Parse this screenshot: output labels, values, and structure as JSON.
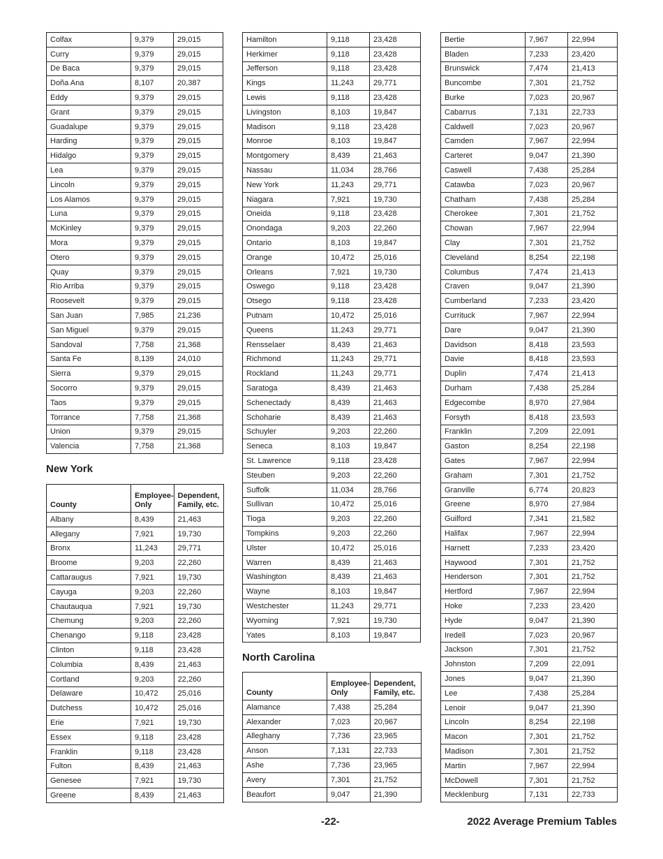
{
  "headers": {
    "county": "County",
    "employee": "Employee-\nOnly",
    "employee_l1": "Employee-",
    "employee_l2": "Only",
    "dependent_l1": "Dependent,",
    "dependent_l2": "Family, etc."
  },
  "new_mexico_continued": [
    [
      "Colfax",
      "9,379",
      "29,015"
    ],
    [
      "Curry",
      "9,379",
      "29,015"
    ],
    [
      "De Baca",
      "9,379",
      "29,015"
    ],
    [
      "Doña Ana",
      "8,107",
      "20,387"
    ],
    [
      "Eddy",
      "9,379",
      "29,015"
    ],
    [
      "Grant",
      "9,379",
      "29,015"
    ],
    [
      "Guadalupe",
      "9,379",
      "29,015"
    ],
    [
      "Harding",
      "9,379",
      "29,015"
    ],
    [
      "Hidalgo",
      "9,379",
      "29,015"
    ],
    [
      "Lea",
      "9,379",
      "29,015"
    ],
    [
      "Lincoln",
      "9,379",
      "29,015"
    ],
    [
      "Los Alamos",
      "9,379",
      "29,015"
    ],
    [
      "Luna",
      "9,379",
      "29,015"
    ],
    [
      "McKinley",
      "9,379",
      "29,015"
    ],
    [
      "Mora",
      "9,379",
      "29,015"
    ],
    [
      "Otero",
      "9,379",
      "29,015"
    ],
    [
      "Quay",
      "9,379",
      "29,015"
    ],
    [
      "Rio Arriba",
      "9,379",
      "29,015"
    ],
    [
      "Roosevelt",
      "9,379",
      "29,015"
    ],
    [
      "San Juan",
      "7,985",
      "21,236"
    ],
    [
      "San Miguel",
      "9,379",
      "29,015"
    ],
    [
      "Sandoval",
      "7,758",
      "21,368"
    ],
    [
      "Santa Fe",
      "8,139",
      "24,010"
    ],
    [
      "Sierra",
      "9,379",
      "29,015"
    ],
    [
      "Socorro",
      "9,379",
      "29,015"
    ],
    [
      "Taos",
      "9,379",
      "29,015"
    ],
    [
      "Torrance",
      "7,758",
      "21,368"
    ],
    [
      "Union",
      "9,379",
      "29,015"
    ],
    [
      "Valencia",
      "7,758",
      "21,368"
    ]
  ],
  "new_york": {
    "title": "New York",
    "rows_a": [
      [
        "Albany",
        "8,439",
        "21,463"
      ],
      [
        "Allegany",
        "7,921",
        "19,730"
      ],
      [
        "Bronx",
        "11,243",
        "29,771"
      ],
      [
        "Broome",
        "9,203",
        "22,260"
      ],
      [
        "Cattaraugus",
        "7,921",
        "19,730"
      ],
      [
        "Cayuga",
        "9,203",
        "22,260"
      ],
      [
        "Chautauqua",
        "7,921",
        "19,730"
      ],
      [
        "Chemung",
        "9,203",
        "22,260"
      ],
      [
        "Chenango",
        "9,118",
        "23,428"
      ],
      [
        "Clinton",
        "9,118",
        "23,428"
      ],
      [
        "Columbia",
        "8,439",
        "21,463"
      ],
      [
        "Cortland",
        "9,203",
        "22,260"
      ],
      [
        "Delaware",
        "10,472",
        "25,016"
      ],
      [
        "Dutchess",
        "10,472",
        "25,016"
      ],
      [
        "Erie",
        "7,921",
        "19,730"
      ],
      [
        "Essex",
        "9,118",
        "23,428"
      ],
      [
        "Franklin",
        "9,118",
        "23,428"
      ],
      [
        "Fulton",
        "8,439",
        "21,463"
      ],
      [
        "Genesee",
        "7,921",
        "19,730"
      ],
      [
        "Greene",
        "8,439",
        "21,463"
      ]
    ],
    "rows_b": [
      [
        "Hamilton",
        "9,118",
        "23,428"
      ],
      [
        "Herkimer",
        "9,118",
        "23,428"
      ],
      [
        "Jefferson",
        "9,118",
        "23,428"
      ],
      [
        "Kings",
        "11,243",
        "29,771"
      ],
      [
        "Lewis",
        "9,118",
        "23,428"
      ],
      [
        "Livingston",
        "8,103",
        "19,847"
      ],
      [
        "Madison",
        "9,118",
        "23,428"
      ],
      [
        "Monroe",
        "8,103",
        "19,847"
      ],
      [
        "Montgomery",
        "8,439",
        "21,463"
      ],
      [
        "Nassau",
        "11,034",
        "28,766"
      ],
      [
        "New York",
        "11,243",
        "29,771"
      ],
      [
        "Niagara",
        "7,921",
        "19,730"
      ],
      [
        "Oneida",
        "9,118",
        "23,428"
      ],
      [
        "Onondaga",
        "9,203",
        "22,260"
      ],
      [
        "Ontario",
        "8,103",
        "19,847"
      ],
      [
        "Orange",
        "10,472",
        "25,016"
      ],
      [
        "Orleans",
        "7,921",
        "19,730"
      ],
      [
        "Oswego",
        "9,118",
        "23,428"
      ],
      [
        "Otsego",
        "9,118",
        "23,428"
      ],
      [
        "Putnam",
        "10,472",
        "25,016"
      ],
      [
        "Queens",
        "11,243",
        "29,771"
      ],
      [
        "Rensselaer",
        "8,439",
        "21,463"
      ],
      [
        "Richmond",
        "11,243",
        "29,771"
      ],
      [
        "Rockland",
        "11,243",
        "29,771"
      ],
      [
        "Saratoga",
        "8,439",
        "21,463"
      ],
      [
        "Schenectady",
        "8,439",
        "21,463"
      ],
      [
        "Schoharie",
        "8,439",
        "21,463"
      ],
      [
        "Schuyler",
        "9,203",
        "22,260"
      ],
      [
        "Seneca",
        "8,103",
        "19,847"
      ],
      [
        "St. Lawrence",
        "9,118",
        "23,428"
      ],
      [
        "Steuben",
        "9,203",
        "22,260"
      ],
      [
        "Suffolk",
        "11,034",
        "28,766"
      ],
      [
        "Sullivan",
        "10,472",
        "25,016"
      ],
      [
        "Tioga",
        "9,203",
        "22,260"
      ],
      [
        "Tompkins",
        "9,203",
        "22,260"
      ],
      [
        "Ulster",
        "10,472",
        "25,016"
      ],
      [
        "Warren",
        "8,439",
        "21,463"
      ],
      [
        "Washington",
        "8,439",
        "21,463"
      ],
      [
        "Wayne",
        "8,103",
        "19,847"
      ],
      [
        "Westchester",
        "11,243",
        "29,771"
      ],
      [
        "Wyoming",
        "7,921",
        "19,730"
      ],
      [
        "Yates",
        "8,103",
        "19,847"
      ]
    ]
  },
  "north_carolina": {
    "title": "North Carolina",
    "rows_a": [
      [
        "Alamance",
        "7,438",
        "25,284"
      ],
      [
        "Alexander",
        "7,023",
        "20,967"
      ],
      [
        "Alleghany",
        "7,736",
        "23,965"
      ],
      [
        "Anson",
        "7,131",
        "22,733"
      ],
      [
        "Ashe",
        "7,736",
        "23,965"
      ],
      [
        "Avery",
        "7,301",
        "21,752"
      ],
      [
        "Beaufort",
        "9,047",
        "21,390"
      ]
    ],
    "rows_b": [
      [
        "Bertie",
        "7,967",
        "22,994"
      ],
      [
        "Bladen",
        "7,233",
        "23,420"
      ],
      [
        "Brunswick",
        "7,474",
        "21,413"
      ],
      [
        "Buncombe",
        "7,301",
        "21,752"
      ],
      [
        "Burke",
        "7,023",
        "20,967"
      ],
      [
        "Cabarrus",
        "7,131",
        "22,733"
      ],
      [
        "Caldwell",
        "7,023",
        "20,967"
      ],
      [
        "Camden",
        "7,967",
        "22,994"
      ],
      [
        "Carteret",
        "9,047",
        "21,390"
      ],
      [
        "Caswell",
        "7,438",
        "25,284"
      ],
      [
        "Catawba",
        "7,023",
        "20,967"
      ],
      [
        "Chatham",
        "7,438",
        "25,284"
      ],
      [
        "Cherokee",
        "7,301",
        "21,752"
      ],
      [
        "Chowan",
        "7,967",
        "22,994"
      ],
      [
        "Clay",
        "7,301",
        "21,752"
      ],
      [
        "Cleveland",
        "8,254",
        "22,198"
      ],
      [
        "Columbus",
        "7,474",
        "21,413"
      ],
      [
        "Craven",
        "9,047",
        "21,390"
      ],
      [
        "Cumberland",
        "7,233",
        "23,420"
      ],
      [
        "Currituck",
        "7,967",
        "22,994"
      ],
      [
        "Dare",
        "9,047",
        "21,390"
      ],
      [
        "Davidson",
        "8,418",
        "23,593"
      ],
      [
        "Davie",
        "8,418",
        "23,593"
      ],
      [
        "Duplin",
        "7,474",
        "21,413"
      ],
      [
        "Durham",
        "7,438",
        "25,284"
      ],
      [
        "Edgecombe",
        "8,970",
        "27,984"
      ],
      [
        "Forsyth",
        "8,418",
        "23,593"
      ],
      [
        "Franklin",
        "7,209",
        "22,091"
      ],
      [
        "Gaston",
        "8,254",
        "22,198"
      ],
      [
        "Gates",
        "7,967",
        "22,994"
      ],
      [
        "Graham",
        "7,301",
        "21,752"
      ],
      [
        "Granville",
        "6,774",
        "20,823"
      ],
      [
        "Greene",
        "8,970",
        "27,984"
      ],
      [
        "Guilford",
        "7,341",
        "21,582"
      ],
      [
        "Halifax",
        "7,967",
        "22,994"
      ],
      [
        "Harnett",
        "7,233",
        "23,420"
      ],
      [
        "Haywood",
        "7,301",
        "21,752"
      ],
      [
        "Henderson",
        "7,301",
        "21,752"
      ],
      [
        "Hertford",
        "7,967",
        "22,994"
      ],
      [
        "Hoke",
        "7,233",
        "23,420"
      ],
      [
        "Hyde",
        "9,047",
        "21,390"
      ],
      [
        "Iredell",
        "7,023",
        "20,967"
      ],
      [
        "Jackson",
        "7,301",
        "21,752"
      ],
      [
        "Johnston",
        "7,209",
        "22,091"
      ],
      [
        "Jones",
        "9,047",
        "21,390"
      ],
      [
        "Lee",
        "7,438",
        "25,284"
      ],
      [
        "Lenoir",
        "9,047",
        "21,390"
      ],
      [
        "Lincoln",
        "8,254",
        "22,198"
      ],
      [
        "Macon",
        "7,301",
        "21,752"
      ],
      [
        "Madison",
        "7,301",
        "21,752"
      ],
      [
        "Martin",
        "7,967",
        "22,994"
      ],
      [
        "McDowell",
        "7,301",
        "21,752"
      ],
      [
        "Mecklenburg",
        "7,131",
        "22,733"
      ]
    ]
  },
  "footer": {
    "page_number": "-22-",
    "title": "2022 Average Premium Tables"
  }
}
